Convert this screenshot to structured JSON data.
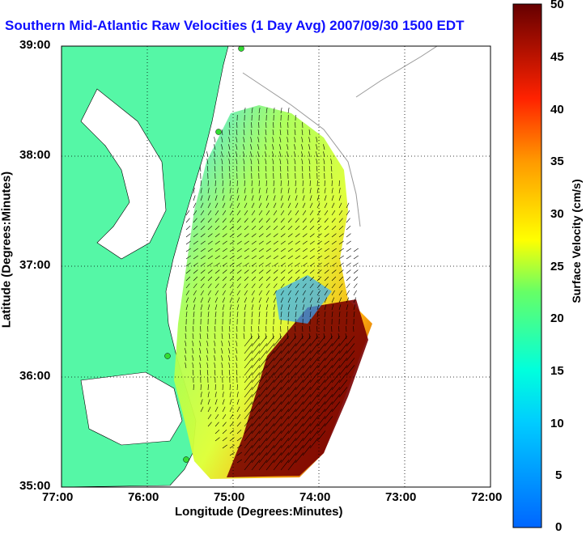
{
  "title": "Southern Mid-Atlantic Raw Velocities (1 Day Avg) 2007/09/30 1500 EDT",
  "xlabel": "Longitude (Degrees:Minutes)",
  "ylabel": "Latitude (Degrees:Minutes)",
  "x_ticks": [
    "77:00",
    "76:00",
    "75:00",
    "74:00",
    "73:00",
    "72:00"
  ],
  "y_ticks": [
    "39:00",
    "38:00",
    "37:00",
    "36:00",
    "35:00"
  ],
  "colorbar": {
    "label": "Surface Velocity (cm/s)",
    "ticks": [
      "50",
      "45",
      "40",
      "35",
      "30",
      "25",
      "20",
      "15",
      "10",
      "5",
      "0"
    ],
    "range": [
      0,
      50
    ]
  },
  "colors": {
    "title": "#1010ff",
    "land": "#55f7a6",
    "water": "#ffffff"
  }
}
